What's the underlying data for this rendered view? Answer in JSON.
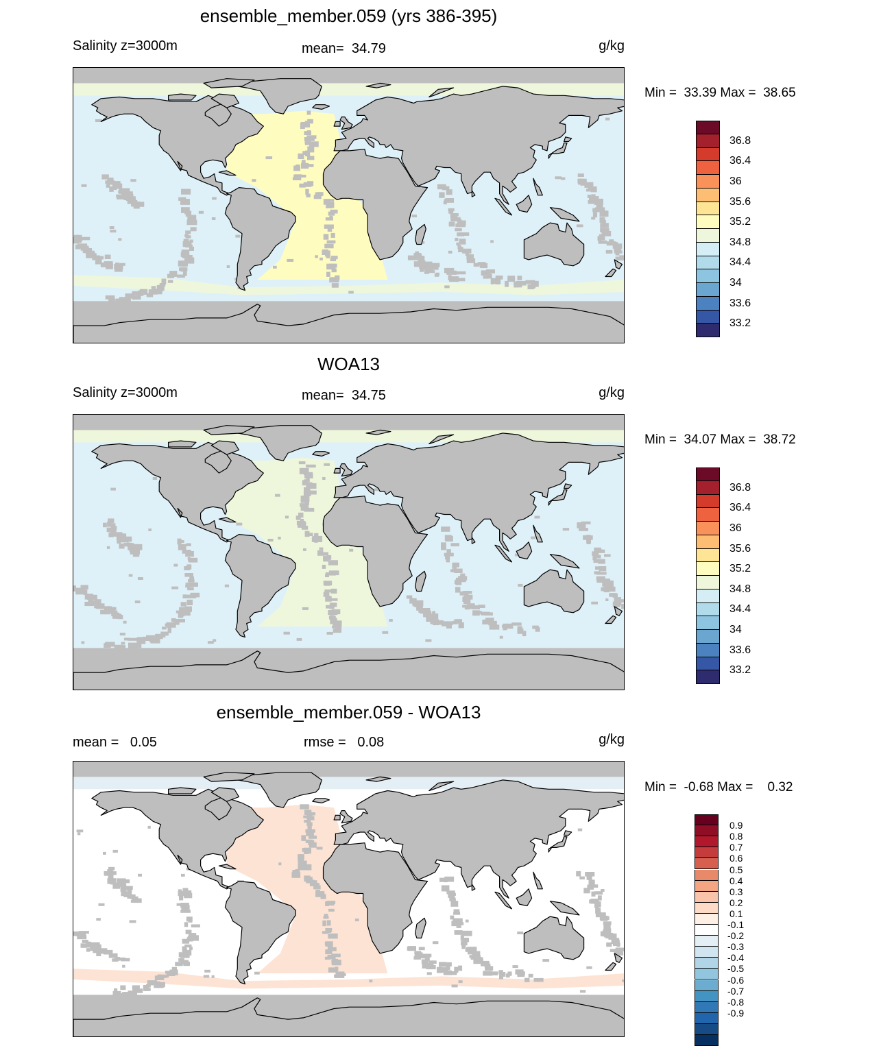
{
  "panels": [
    {
      "title": "ensemble_member.059 (yrs 386-395)",
      "subtitle_left": "Salinity z=3000m",
      "subtitle_center": "mean=  34.79",
      "subtitle_right": "g/kg",
      "minmax": "Min =  33.39 Max =  38.65",
      "field": "model",
      "colorbar": {
        "colors": [
          "#6b0b28",
          "#a3202c",
          "#d43b2b",
          "#ee6240",
          "#f9925a",
          "#fdbe74",
          "#fee595",
          "#fffcc0",
          "#eef7dc",
          "#d5eef6",
          "#b1dbeb",
          "#8dc4e0",
          "#6aa6d0",
          "#4b82bf",
          "#3656a6",
          "#2e2c6e"
        ],
        "labels": [
          "36.8",
          "36.4",
          "36",
          "35.6",
          "35.2",
          "34.8",
          "34.4",
          "34",
          "33.6",
          "33.2"
        ]
      }
    },
    {
      "title": "WOA13",
      "subtitle_left": "Salinity z=3000m",
      "subtitle_center": "mean=  34.75",
      "subtitle_right": "g/kg",
      "minmax": "Min =  34.07 Max =  38.72",
      "field": "obs",
      "colorbar": {
        "colors": [
          "#6b0b28",
          "#a3202c",
          "#d43b2b",
          "#ee6240",
          "#f9925a",
          "#fdbe74",
          "#fee595",
          "#fffcc0",
          "#eef7dc",
          "#d5eef6",
          "#b1dbeb",
          "#8dc4e0",
          "#6aa6d0",
          "#4b82bf",
          "#3656a6",
          "#2e2c6e"
        ],
        "labels": [
          "36.8",
          "36.4",
          "36",
          "35.6",
          "35.2",
          "34.8",
          "34.4",
          "34",
          "33.6",
          "33.2"
        ]
      }
    },
    {
      "title": "ensemble_member.059 - WOA13",
      "subtitle_left": "mean =   0.05",
      "subtitle_center": "rmse =   0.08",
      "subtitle_right": "g/kg",
      "minmax": "Min =  -0.68 Max =    0.32",
      "field": "diff",
      "colorbar": {
        "colors": [
          "#67001f",
          "#8f0d25",
          "#b2182b",
          "#c43c3c",
          "#d6604d",
          "#e8896a",
          "#f4a582",
          "#f9c4a9",
          "#fddbc7",
          "#fff0e6",
          "#ffffff",
          "#e4eef5",
          "#d1e5f0",
          "#b1d5e7",
          "#92c5de",
          "#6bacd0",
          "#4393c3",
          "#3079b6",
          "#2166ac",
          "#164b86",
          "#053061"
        ],
        "labels": [
          "0.9",
          "0.8",
          "0.7",
          "0.6",
          "0.5",
          "0.4",
          "0.3",
          "0.2",
          "0.1",
          "-0.1",
          "-0.2",
          "-0.3",
          "-0.4",
          "-0.5",
          "-0.6",
          "-0.7",
          "-0.8",
          "-0.9"
        ]
      }
    }
  ],
  "field_colors": {
    "land": "#bebebe",
    "model": {
      "ocean": "#dff1f8",
      "atlantic": "#fffcc0",
      "southern_band": "#eef7dc",
      "arctic": "#eef7dc"
    },
    "obs": {
      "ocean": "#dff1f8",
      "atlantic": "#eef7dc",
      "southern_band": "#dff1f8",
      "arctic": "#eef7dc"
    },
    "diff": {
      "ocean": "#ffffff",
      "atlantic": "#fde3d4",
      "southern_band": "#fde3d4",
      "arctic": "#e4eef5"
    }
  }
}
